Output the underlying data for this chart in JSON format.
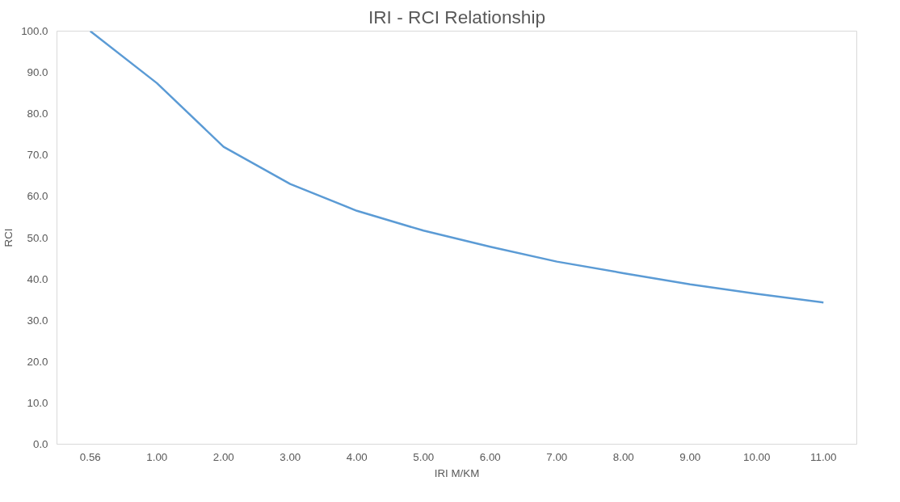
{
  "chart_data": {
    "type": "line",
    "title": "IRI - RCI Relationship",
    "xlabel": "IRI M/KM",
    "ylabel": "RCI",
    "categories": [
      "0.56",
      "1.00",
      "2.00",
      "3.00",
      "4.00",
      "5.00",
      "6.00",
      "7.00",
      "8.00",
      "9.00",
      "10.00",
      "11.00"
    ],
    "series": [
      {
        "color": "#5b9bd5",
        "values": [
          100.0,
          87.4,
          72.0,
          63.0,
          56.5,
          51.7,
          47.8,
          44.2,
          41.4,
          38.7,
          36.4,
          34.3
        ]
      }
    ],
    "ylim": [
      0,
      100
    ],
    "yticks": [
      {
        "value": 0,
        "label": "0.0"
      },
      {
        "value": 10,
        "label": "10.0"
      },
      {
        "value": 20,
        "label": "20.0"
      },
      {
        "value": 30,
        "label": "30.0"
      },
      {
        "value": 40,
        "label": "40.0"
      },
      {
        "value": 50,
        "label": "50.0"
      },
      {
        "value": 60,
        "label": "60.0"
      },
      {
        "value": 70,
        "label": "70.0"
      },
      {
        "value": 80,
        "label": "80.0"
      },
      {
        "value": 90,
        "label": "90.0"
      },
      {
        "value": 100,
        "label": "100.0"
      }
    ],
    "grid": false,
    "marker": "none",
    "line_style": "solid"
  }
}
